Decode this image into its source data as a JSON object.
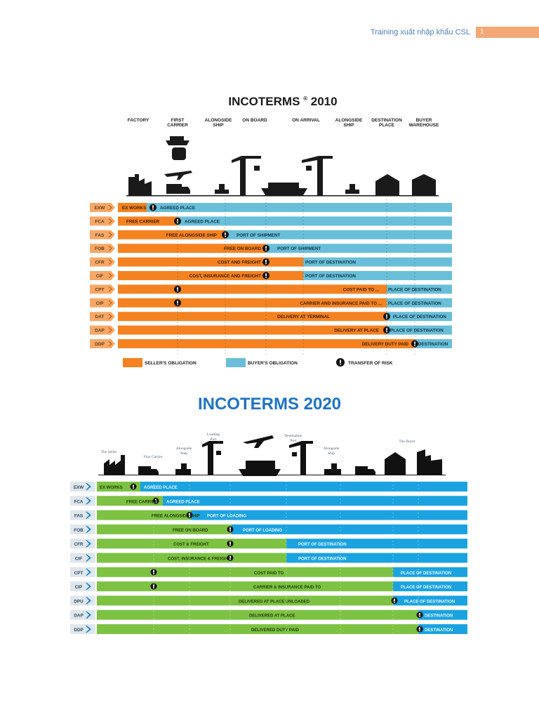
{
  "header": {
    "title": "Training xuất nhập khẩu CSL",
    "page": "1"
  },
  "chart2010": {
    "title": "INCOTERMS",
    "reg": "®",
    "year": "2010",
    "stages": [
      [
        "FACTORY"
      ],
      [
        "FIRST",
        "CARRIER"
      ],
      [
        "ALONGSIDE",
        "SHIP"
      ],
      [
        "ON BOARD"
      ],
      [
        "ON ARRIVAL"
      ],
      [
        "ALONGSIDE",
        "SHIP"
      ],
      [
        "DESTINATION",
        "PLACE"
      ],
      [
        "BUYER",
        "WAREHOUSE"
      ]
    ],
    "colors": {
      "seller": "#f58220",
      "buyer": "#69bfd9",
      "code_bg": "#f7a866",
      "code_text": "#5b3a1c"
    },
    "rows": [
      {
        "code": "EXW",
        "seller": "EX WORKS",
        "buyer": "AGREED PLACE"
      },
      {
        "code": "FCA",
        "seller": "FREE CARRIER",
        "buyer": "AGREED PLACE"
      },
      {
        "code": "FAS",
        "seller": "FREE ALONGSIDE SHIP",
        "buyer": "PORT OF SHIPMENT"
      },
      {
        "code": "FOB",
        "seller": "FREE ON BOARD",
        "buyer": "PORT OF SHIPMENT"
      },
      {
        "code": "CFR",
        "seller": "COST AND FREIGHT",
        "buyer": "PORT OF DESTINATION"
      },
      {
        "code": "CIF",
        "seller": "COST, INSURANCE AND FREIGHT",
        "buyer": "PORT OF DESTINATION"
      },
      {
        "code": "CPT",
        "seller": "COST PAID TO ...",
        "buyer": "PLACE OF DESTINATION"
      },
      {
        "code": "CIP",
        "seller": "CARRIER AND INSURANCE PAID TO ...",
        "buyer": "PLACE OF DESTINATION"
      },
      {
        "code": "DAT",
        "seller": "DELIVERY AT TERMINAL",
        "buyer": "PLACE OF DESTINATION"
      },
      {
        "code": "DAP",
        "seller": "DELIVERY AT PLACE",
        "buyer": "PLACE OF DESTINATION"
      },
      {
        "code": "DDP",
        "seller": "DELIVERY DUTY PAID",
        "buyer": "DESTINATION"
      }
    ],
    "legend": {
      "seller": "SELLER'S OBLIGATION",
      "buyer": "BUYER'S OBLIGATION",
      "risk": "TRANSFER OF RISK"
    }
  },
  "chart2020": {
    "title": "INCOTERMS 2020",
    "stages": [
      [
        "The Seller"
      ],
      [
        "First Carrier"
      ],
      [
        "Alongside",
        "Ship"
      ],
      [
        "Loading",
        "Port"
      ],
      [
        "Destination",
        "Port"
      ],
      [
        "Alongside",
        "Ship"
      ],
      [
        "The Buyer"
      ]
    ],
    "colors": {
      "seller": "#7dc242",
      "buyer": "#1aa3e0",
      "code_bg": "#dfe6ec",
      "code_text": "#2a4a66",
      "chevron": "#1e88c8"
    },
    "rows": [
      {
        "code": "EXW",
        "seller": "EX WORKS",
        "buyer": "AGREED PLACE"
      },
      {
        "code": "FCA",
        "seller": "FREE CARRIER",
        "buyer": "AGREED PLACE"
      },
      {
        "code": "FAS",
        "seller": "FREE ALONGSIDE SHIP",
        "buyer": "PORT OF LOADING"
      },
      {
        "code": "FOB",
        "seller": "FREE ON BOARD",
        "buyer": "PORT OF LOADING"
      },
      {
        "code": "CFR",
        "seller": "COST & FREIGHT",
        "buyer": "PORT OF DESTINATION"
      },
      {
        "code": "CIF",
        "seller": "COST, INSURANCE & FREIGHT",
        "buyer": "PORT OF DESTINATION"
      },
      {
        "code": "CPT",
        "seller": "COST PAID TO",
        "buyer": "PLACE OF DESTINATION"
      },
      {
        "code": "CIP",
        "seller": "CARRIER & INSURANCE PAID TO",
        "buyer": "PLACE OF DESTINATION"
      },
      {
        "code": "DPU",
        "seller": "DELIVERED AT PLACE UNLOADED",
        "buyer": "PLACE OF DESTINATION"
      },
      {
        "code": "DAP",
        "seller": "DELIVERED AT PLACE",
        "buyer": "DESTINATION"
      },
      {
        "code": "DDP",
        "seller": "DELIVERED DUTY PAID",
        "buyer": "DESTINATION"
      }
    ]
  }
}
